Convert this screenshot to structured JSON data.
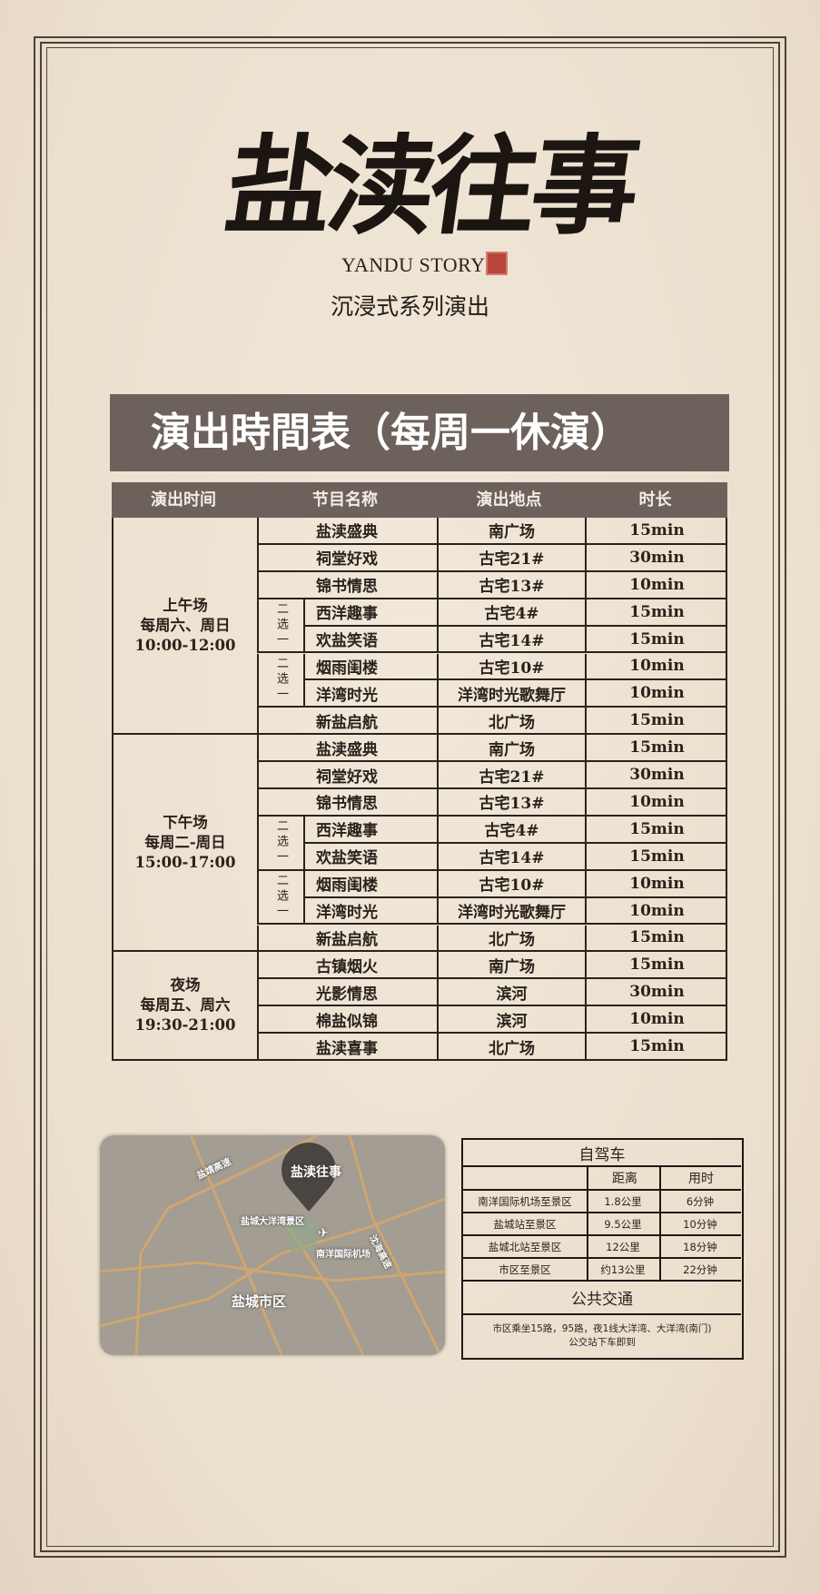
{
  "logo": {
    "calligraphy": "盐渎往事",
    "english": "YANDU STORY",
    "subtitle": "沉浸式系列演出"
  },
  "schedule": {
    "title": "演出時間表（每周一休演）",
    "headers": [
      "演出时间",
      "节目名称",
      "演出地点",
      "时长"
    ],
    "pick_label": "二选一",
    "sessions": [
      {
        "name": "上午场",
        "days": "每周六、周日",
        "time": "10:00-12:00",
        "rows": [
          [
            "盐渎盛典",
            "南广场",
            "15min"
          ],
          [
            "祠堂好戏",
            "古宅21#",
            "30min"
          ],
          [
            "锦书情思",
            "古宅13#",
            "10min"
          ],
          [
            "西洋趣事",
            "古宅4#",
            "15min"
          ],
          [
            "欢盐笑语",
            "古宅14#",
            "15min"
          ],
          [
            "烟雨闺楼",
            "古宅10#",
            "10min"
          ],
          [
            "洋湾时光",
            "洋湾时光歌舞厅",
            "10min"
          ],
          [
            "新盐启航",
            "北广场",
            "15min"
          ]
        ],
        "pick_groups": [
          [
            3,
            4
          ],
          [
            5,
            6
          ]
        ]
      },
      {
        "name": "下午场",
        "days": "每周二-周日",
        "time": "15:00-17:00",
        "rows": [
          [
            "盐渎盛典",
            "南广场",
            "15min"
          ],
          [
            "祠堂好戏",
            "古宅21#",
            "30min"
          ],
          [
            "锦书情思",
            "古宅13#",
            "10min"
          ],
          [
            "西洋趣事",
            "古宅4#",
            "15min"
          ],
          [
            "欢盐笑语",
            "古宅14#",
            "15min"
          ],
          [
            "烟雨闺楼",
            "古宅10#",
            "10min"
          ],
          [
            "洋湾时光",
            "洋湾时光歌舞厅",
            "10min"
          ],
          [
            "新盐启航",
            "北广场",
            "15min"
          ]
        ],
        "pick_groups": [
          [
            3,
            4
          ],
          [
            5,
            6
          ]
        ]
      },
      {
        "name": "夜场",
        "days": "每周五、周六",
        "time": "19:30-21:00",
        "rows": [
          [
            "古镇烟火",
            "南广场",
            "15min"
          ],
          [
            "光影情思",
            "滨河",
            "30min"
          ],
          [
            "棉盐似锦",
            "滨河",
            "10min"
          ],
          [
            "盐渎喜事",
            "北广场",
            "15min"
          ]
        ],
        "pick_groups": []
      }
    ]
  },
  "map": {
    "labels": {
      "highway_1": "盐靖高速",
      "scenic": "盐城大洋湾景区",
      "airport": "南洋国际机场",
      "highway_2": "沈海高速",
      "city": "盐城市区"
    },
    "pin_logo": "盐渎往事"
  },
  "transport": {
    "driving_title": "自驾车",
    "headers": [
      "",
      "距离",
      "用时"
    ],
    "rows": [
      [
        "南洋国际机场至景区",
        "1.8公里",
        "6分钟"
      ],
      [
        "盐城站至景区",
        "9.5公里",
        "10分钟"
      ],
      [
        "盐城北站至景区",
        "12公里",
        "18分钟"
      ],
      [
        "市区至景区",
        "约13公里",
        "22分钟"
      ]
    ],
    "public_title": "公共交通",
    "public_text_1": "市区乘坐15路，95路，夜1线大洋湾、大洋湾(南门)",
    "public_text_2": "公交站下车即到"
  },
  "colors": {
    "paper": "#eee3d3",
    "bar": "#6d625b",
    "ink": "#2a221c",
    "seal": "#b8453b"
  }
}
